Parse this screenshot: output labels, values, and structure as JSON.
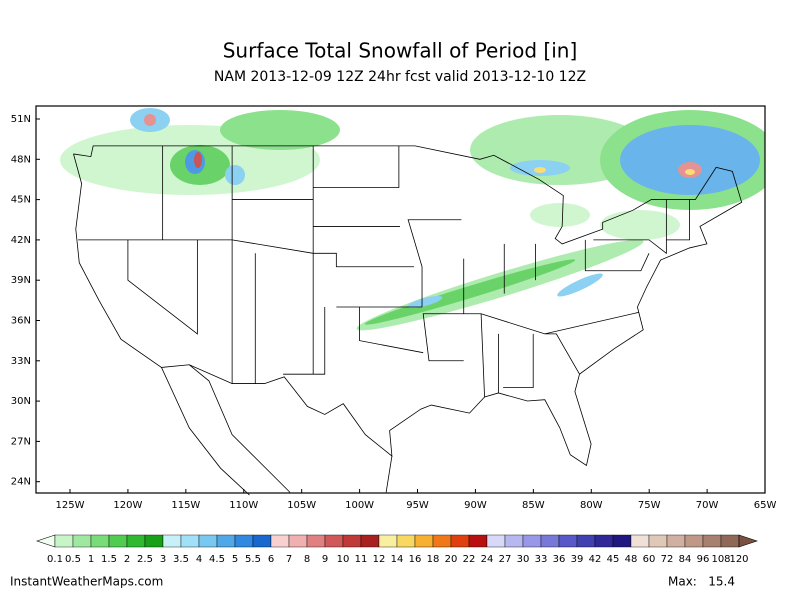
{
  "header": {
    "title": "Surface Total Snowfall of Period [in]",
    "subtitle": "NAM 2013-12-09 12Z 24hr fcst valid 2013-12-10 12Z"
  },
  "map": {
    "lat_labels": [
      "51N",
      "48N",
      "45N",
      "42N",
      "39N",
      "36N",
      "33N",
      "30N",
      "27N",
      "24N"
    ],
    "lon_labels": [
      "125W",
      "120W",
      "115W",
      "110W",
      "105W",
      "100W",
      "95W",
      "90W",
      "85W",
      "80W",
      "75W",
      "70W",
      "65W"
    ]
  },
  "colorbar": {
    "labels": [
      "0.1",
      "0.5",
      "1",
      "1.5",
      "2",
      "2.5",
      "3",
      "3.5",
      "4",
      "4.5",
      "5",
      "5.5",
      "6",
      "7",
      "8",
      "9",
      "10",
      "11",
      "12",
      "14",
      "16",
      "18",
      "20",
      "22",
      "24",
      "27",
      "30",
      "33",
      "36",
      "39",
      "42",
      "45",
      "48",
      "60",
      "72",
      "84",
      "96",
      "108",
      "120"
    ],
    "colors": [
      "#c8f5c8",
      "#a0e8a0",
      "#78dc78",
      "#50cc50",
      "#30b830",
      "#18a018",
      "#c8f0f8",
      "#a0e0f8",
      "#78c8f0",
      "#50a8e8",
      "#3088e0",
      "#1868d0",
      "#f8d0d0",
      "#f0b0b0",
      "#e08080",
      "#d05858",
      "#c03838",
      "#a82020",
      "#f8f0a0",
      "#f8d860",
      "#f8b030",
      "#f07818",
      "#e04010",
      "#b81010",
      "#d8d8f8",
      "#b8b8f0",
      "#9898e8",
      "#7878d8",
      "#5858c8",
      "#4040b0",
      "#302898",
      "#201880",
      "#f0e0d8",
      "#e0c8b8",
      "#d0b0a0",
      "#c09888",
      "#a88070",
      "#906858"
    ],
    "left_color": "#f0fff0",
    "right_color": "#7a5040"
  },
  "footer": {
    "credit": "InstantWeatherMaps.com",
    "max_label": "Max:",
    "max_value": "15.4"
  }
}
